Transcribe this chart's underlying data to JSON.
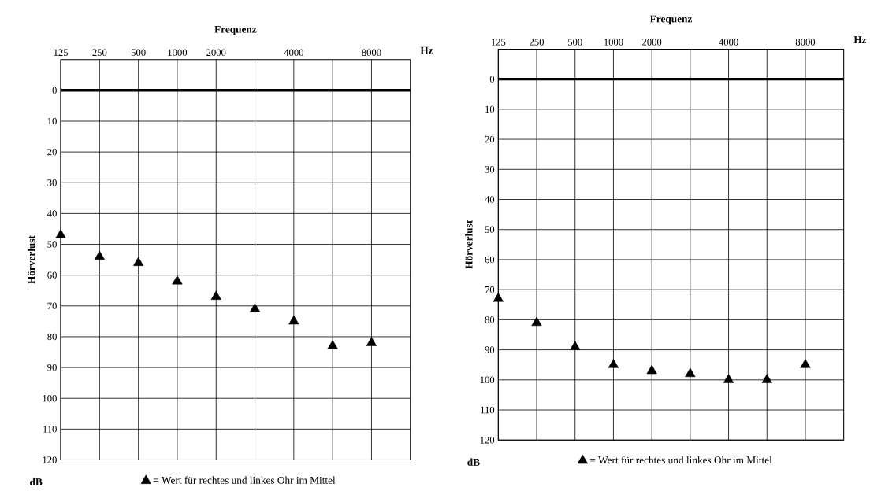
{
  "chart_data": [
    {
      "type": "scatter",
      "title": "Frequenz",
      "ylabel": "Hörverlust",
      "annotations": [
        "Hz",
        "dB"
      ],
      "categories": [
        "125",
        "250",
        "500",
        "1000",
        "2000",
        null,
        "4000",
        null,
        "8000"
      ],
      "series": [
        {
          "name": "= Wert für rechtes und linkes Ohr im Mittel",
          "color": "#000000",
          "values": [
            47,
            54,
            56,
            62,
            67,
            71,
            75,
            83,
            82
          ]
        }
      ],
      "ylim": [
        120,
        -10
      ],
      "yticks": [
        0,
        10,
        20,
        30,
        40,
        50,
        60,
        70,
        80,
        90,
        100,
        110,
        120
      ],
      "grid": true,
      "marker": "triangle",
      "legend": "bottom",
      "ref_lines": [
        {
          "axis": "y",
          "value": 0
        }
      ]
    },
    {
      "type": "scatter",
      "title": "Frequenz",
      "ylabel": "Hörverlust",
      "annotations": [
        "Hz",
        "dB"
      ],
      "categories": [
        "125",
        "250",
        "500",
        "1000",
        "2000",
        null,
        "4000",
        null,
        "8000"
      ],
      "series": [
        {
          "name": "= Wert für rechtes und linkes Ohr im Mittel",
          "color": "#000000",
          "values": [
            73,
            81,
            89,
            95,
            97,
            98,
            100,
            100,
            95
          ]
        }
      ],
      "ylim": [
        120,
        -10
      ],
      "yticks": [
        0,
        10,
        20,
        30,
        40,
        50,
        60,
        70,
        80,
        90,
        100,
        110,
        120
      ],
      "grid": true,
      "marker": "triangle",
      "legend": "bottom",
      "ref_lines": [
        {
          "axis": "y",
          "value": 0
        }
      ]
    }
  ]
}
